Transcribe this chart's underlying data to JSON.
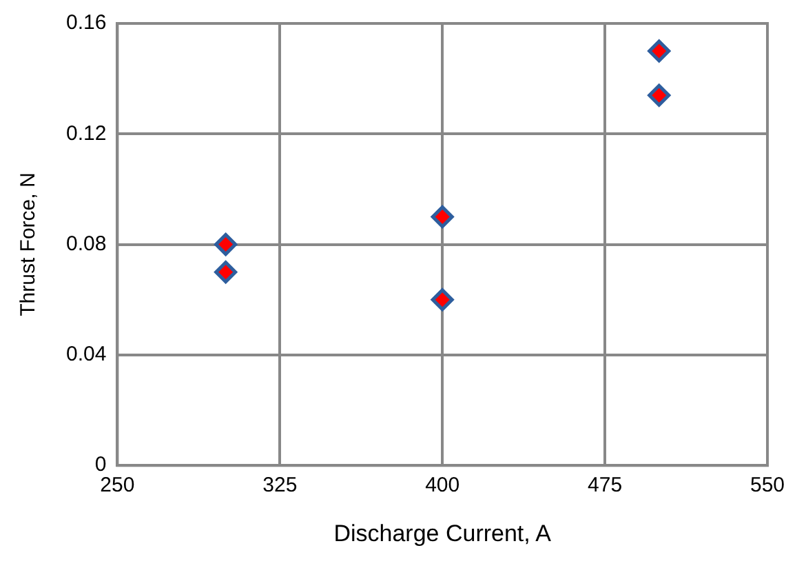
{
  "chart_data": {
    "type": "scatter",
    "xlabel": "Discharge Current, A",
    "ylabel": "Thrust Force, N",
    "series": [
      {
        "color": "#ff0000",
        "x": [
          300,
          300,
          400,
          400,
          500,
          500
        ],
        "values": [
          0.08,
          0.07,
          0.09,
          0.06,
          0.15,
          0.134
        ]
      }
    ],
    "xlim": [
      250,
      550
    ],
    "xticks": [
      250,
      325,
      400,
      475,
      550
    ],
    "ylim": [
      0,
      0.16
    ],
    "yticks": [
      0,
      {
        "value": 0.04,
        "label": "0.04"
      },
      {
        "value": 0.08,
        "label": "0.08"
      },
      {
        "value": 0.12,
        "label": "0.12"
      },
      {
        "value": 0.16,
        "label": "0.16"
      }
    ],
    "grid": true,
    "legend": false,
    "marker": "diamond"
  }
}
